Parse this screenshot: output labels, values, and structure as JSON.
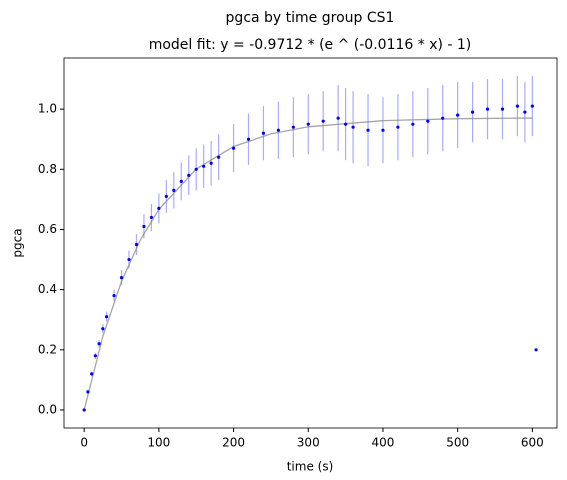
{
  "chart_data": {
    "type": "scatter",
    "title": "pgca by time group CS1",
    "subtitle": "model fit: y = -0.9712 * (e ^ (-0.0116 * x) - 1)",
    "x_label": "time (s)",
    "y_label": "pgca",
    "xlim": [
      -27,
      633
    ],
    "ylim": [
      -0.06,
      1.17
    ],
    "xticks": [
      0,
      100,
      200,
      300,
      400,
      500,
      600
    ],
    "yticks": [
      {
        "value": 0.0,
        "label": "0.0"
      },
      0.2,
      0.4,
      0.6,
      0.8,
      {
        "value": 1.0,
        "label": "1.0"
      }
    ],
    "series": [
      {
        "color": "#0000ff",
        "error_color": "#aaaaff",
        "x": [
          0,
          5,
          10,
          15,
          20,
          25,
          30,
          40,
          50,
          60,
          70,
          80,
          90,
          100,
          110,
          120,
          130,
          140,
          150,
          160,
          170,
          180,
          200,
          220,
          240,
          260,
          280,
          300,
          320,
          340,
          350,
          360,
          380,
          400,
          420,
          440,
          460,
          480,
          500,
          520,
          540,
          560,
          580,
          590,
          600,
          605
        ],
        "values": [
          0.0,
          0.06,
          0.12,
          0.18,
          0.22,
          0.27,
          0.31,
          0.38,
          0.44,
          0.5,
          0.55,
          0.61,
          0.64,
          0.67,
          0.71,
          0.73,
          0.76,
          0.78,
          0.8,
          0.81,
          0.82,
          0.84,
          0.87,
          0.9,
          0.92,
          0.93,
          0.94,
          0.95,
          0.96,
          0.97,
          0.95,
          0.94,
          0.93,
          0.93,
          0.94,
          0.95,
          0.96,
          0.97,
          0.98,
          0.99,
          1.0,
          1.0,
          1.01,
          0.99,
          1.01,
          0.2
        ],
        "errors": [
          0.0,
          0.005,
          0.008,
          0.01,
          0.012,
          0.015,
          0.017,
          0.02,
          0.025,
          0.03,
          0.035,
          0.04,
          0.045,
          0.05,
          0.055,
          0.06,
          0.063,
          0.066,
          0.07,
          0.072,
          0.074,
          0.076,
          0.08,
          0.085,
          0.09,
          0.095,
          0.1,
          0.1,
          0.1,
          0.11,
          0.12,
          0.12,
          0.12,
          0.11,
          0.11,
          0.11,
          0.11,
          0.11,
          0.11,
          0.1,
          0.1,
          0.1,
          0.1,
          0.1,
          0.1,
          0.0
        ]
      }
    ],
    "fit": {
      "color": "#808080",
      "x": [
        0,
        25,
        50,
        75,
        100,
        150,
        200,
        250,
        300,
        400,
        500,
        600
      ],
      "values": [
        0.0,
        0.2444,
        0.4274,
        0.5643,
        0.6667,
        0.8008,
        0.8757,
        0.9178,
        0.9413,
        0.9618,
        0.9683,
        0.9703
      ]
    }
  }
}
